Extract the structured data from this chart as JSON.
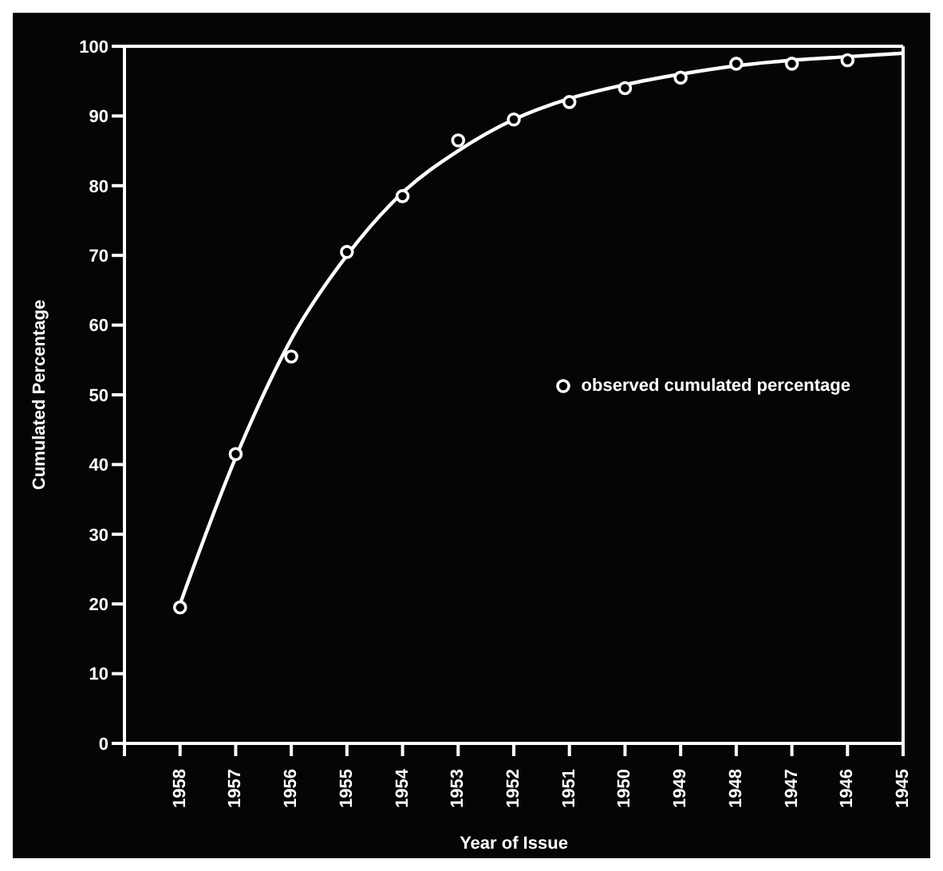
{
  "chart_data": {
    "type": "line",
    "xlabel": "Year of Issue",
    "ylabel": "Cumulated Percentage",
    "xlim": [
      1959,
      1945
    ],
    "xticks": [
      {
        "value": 1959,
        "label": null
      },
      1958,
      1957,
      1956,
      1955,
      1954,
      1953,
      1952,
      1951,
      1950,
      1949,
      1948,
      1947,
      1946,
      1945
    ],
    "ylim": [
      0,
      100
    ],
    "yticks": [
      0,
      10,
      20,
      30,
      40,
      50,
      60,
      70,
      80,
      90,
      100
    ],
    "grid": false,
    "legend": "right",
    "series": [
      {
        "type": "line",
        "color": "#ffffff",
        "marker": "none",
        "line_style": "solid",
        "x": [
          1958,
          1957,
          1956,
          1955,
          1954,
          1953,
          1952,
          1951,
          1950,
          1949,
          1948,
          1947,
          1946,
          1945
        ],
        "values": [
          20,
          41,
          58,
          70,
          79,
          85,
          89.5,
          92.5,
          94.5,
          96,
          97.2,
          98,
          98.5,
          99
        ]
      },
      {
        "type": "scatter",
        "name": "observed cumulated percentage",
        "color": "#ffffff",
        "marker": "circle",
        "x": [
          1958,
          1957,
          1956,
          1955,
          1954,
          1953,
          1952,
          1951,
          1950,
          1949,
          1948,
          1947,
          1946
        ],
        "values": [
          19.5,
          41.5,
          55.5,
          70.5,
          78.5,
          86.5,
          89.5,
          92,
          94,
          95.5,
          97.5,
          97.5,
          98
        ]
      }
    ]
  }
}
